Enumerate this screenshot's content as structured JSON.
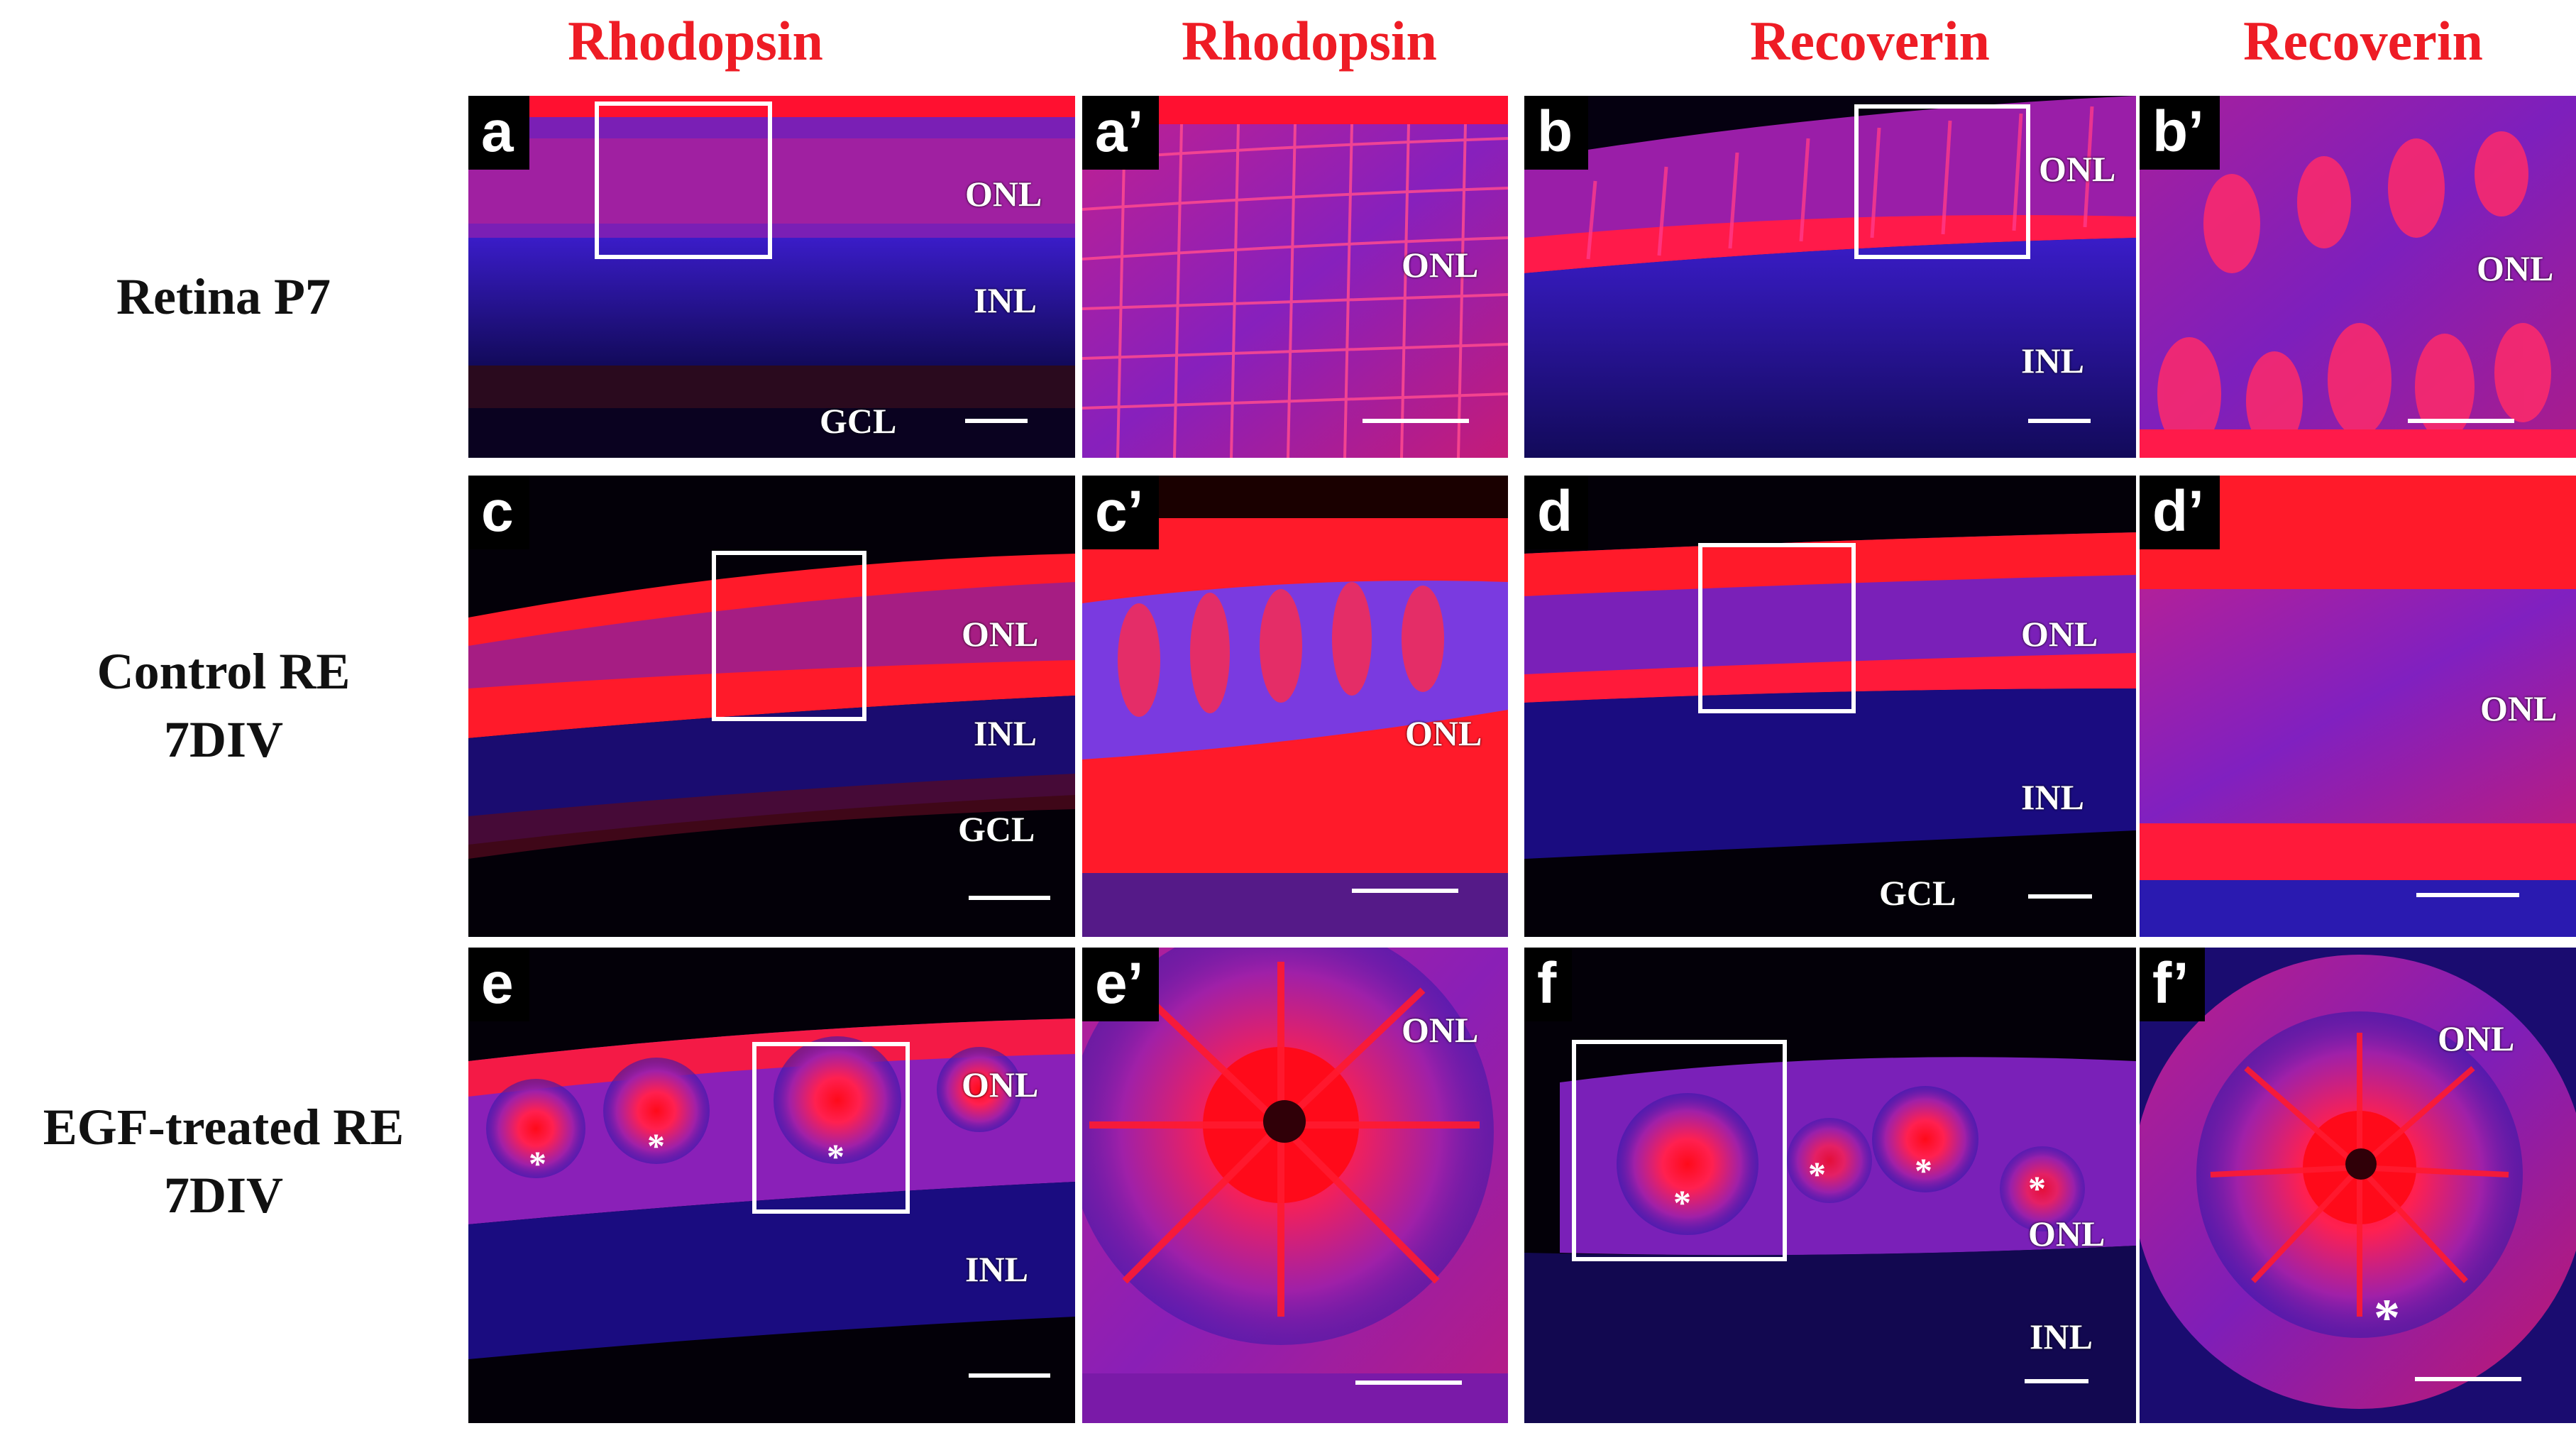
{
  "columns": [
    "Rhodopsin",
    "Rhodopsin",
    "Recoverin",
    "Recoverin"
  ],
  "rows": [
    {
      "line1": "Retina P7",
      "line2": ""
    },
    {
      "line1": "Control RE",
      "line2": "7DIV"
    },
    {
      "line1": "EGF-treated RE",
      "line2": "7DIV"
    }
  ],
  "panels": {
    "a": {
      "label": "a",
      "layers": [
        "ONL",
        "INL",
        "GCL"
      ]
    },
    "a2": {
      "label": "a’",
      "layers": [
        "ONL"
      ]
    },
    "b": {
      "label": "b",
      "layers": [
        "ONL",
        "INL"
      ]
    },
    "b2": {
      "label": "b’",
      "layers": [
        "ONL"
      ]
    },
    "c": {
      "label": "c",
      "layers": [
        "ONL",
        "INL",
        "GCL"
      ]
    },
    "c2": {
      "label": "c’",
      "layers": [
        "ONL"
      ]
    },
    "d": {
      "label": "d",
      "layers": [
        "ONL",
        "INL",
        "GCL"
      ]
    },
    "d2": {
      "label": "d’",
      "layers": [
        "ONL"
      ]
    },
    "e": {
      "label": "e",
      "layers": [
        "ONL",
        "INL"
      ]
    },
    "e2": {
      "label": "e’",
      "layers": [
        "ONL"
      ]
    },
    "f": {
      "label": "f",
      "layers": [
        "ONL",
        "INL"
      ]
    },
    "f2": {
      "label": "f’",
      "layers": [
        "ONL"
      ]
    }
  },
  "rosette_marker": "*",
  "colors": {
    "header": "#ee1c25",
    "stain_red": "#ff1a2e",
    "stain_blue": "#2a1ad0",
    "background": "#050008"
  }
}
